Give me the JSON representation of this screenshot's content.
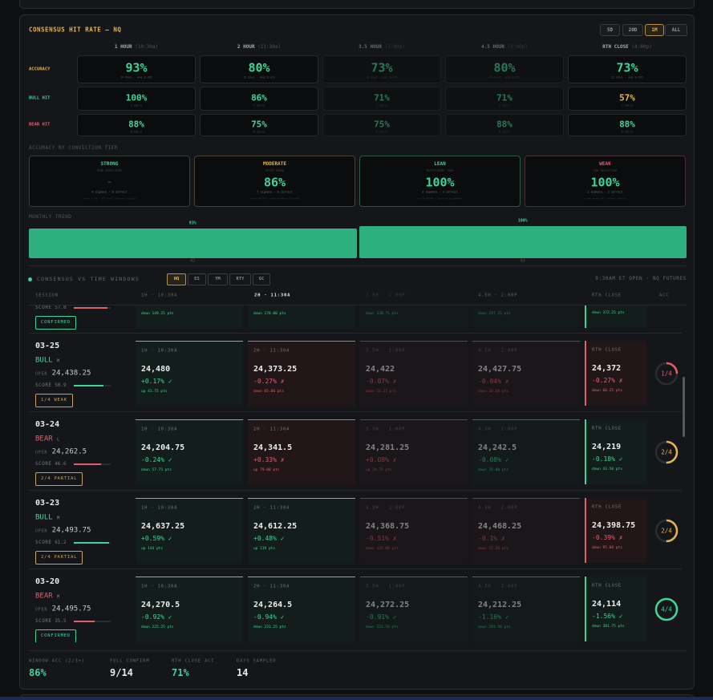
{
  "hit_rate": {
    "title": "CONSENSUS HIT RATE — NQ",
    "ranges": [
      "5D",
      "20D",
      "1M",
      "ALL"
    ],
    "active_range": 2,
    "columns": [
      {
        "name": "1 HOUR",
        "time": "(10:30a)",
        "dim": false
      },
      {
        "name": "2 HOUR",
        "time": "(11:30a)",
        "dim": false
      },
      {
        "name": "3.5 HOUR",
        "time": "(1:00p)",
        "dim": true
      },
      {
        "name": "4.5 HOUR",
        "time": "(2:00p)",
        "dim": true
      },
      {
        "name": "RTH CLOSE",
        "time": "(4:00p)",
        "dim": false
      }
    ],
    "rows": [
      {
        "label": "ACCURACY",
        "color": "#e2b454",
        "value_color": "#3ed598",
        "cells": [
          {
            "value": "93%",
            "sub": "14 days · avg 0.36%"
          },
          {
            "value": "80%",
            "sub": "15 days · avg 0.41%"
          },
          {
            "value": "73%",
            "sub": "15 days · avg 0.44%"
          },
          {
            "value": "80%",
            "sub": "15 days · avg 0.51%"
          },
          {
            "value": "73%",
            "sub": "15 days · avg 0.69%"
          }
        ]
      },
      {
        "label": "BULL HIT",
        "color": "#3ed598",
        "value_color": "#3ed598",
        "cells": [
          {
            "value": "100%",
            "sub": "7 calls"
          },
          {
            "value": "86%",
            "sub": "7 calls"
          },
          {
            "value": "71%",
            "sub": "7 calls"
          },
          {
            "value": "71%",
            "sub": "7 calls"
          },
          {
            "value": "57%",
            "sub": "7 calls",
            "color": "#e2b454"
          }
        ]
      },
      {
        "label": "BEAR HIT",
        "color": "#e0606a",
        "value_color": "#3ed598",
        "cells": [
          {
            "value": "88%",
            "sub": "8 calls"
          },
          {
            "value": "75%",
            "sub": "8 calls"
          },
          {
            "value": "75%",
            "sub": "8 calls"
          },
          {
            "value": "88%",
            "sub": "8 calls"
          },
          {
            "value": "88%",
            "sub": "8 calls"
          }
        ]
      }
    ]
  },
  "tiers": {
    "title": "ACCURACY BY CONVICTION TIER",
    "cards": [
      {
        "name": "STRONG",
        "color": "#3ed598",
        "border": "#34403b",
        "value_color": "#666",
        "sub": "high conviction",
        "value": "—",
        "stat": "0 signals · 0 correct",
        "note": "score ≥ 70 · all four windows aligned"
      },
      {
        "name": "MODERATE",
        "color": "#e2b454",
        "border": "#4a4230",
        "value_color": "#3ed598",
        "sub": "solid setup",
        "value": "86%",
        "stat": "7 signals · 6 correct",
        "note": "score 50–70 · most windows aligned"
      },
      {
        "name": "LEAN",
        "color": "#3ed598",
        "border": "#2c5a46",
        "value_color": "#3ed598",
        "sub": "directional lean",
        "value": "100%",
        "stat": "3 signals · 3 correct",
        "note": "score 40–50 · partial alignment"
      },
      {
        "name": "WEAK",
        "color": "#e0606a",
        "border": "#4a2f32",
        "value_color": "#3ed598",
        "sub": "low conviction",
        "value": "100%",
        "stat": "2 signals · 2 correct",
        "note": "score under 40 · mixed windows"
      }
    ]
  },
  "monthly": {
    "title": "MONTHLY TREND",
    "months": [
      "02",
      "03"
    ],
    "values": [
      93,
      100
    ],
    "value_labels": [
      "93%",
      "100%"
    ],
    "ylim": [
      0,
      100
    ],
    "color": "#2eb07e"
  },
  "windows": {
    "title": "CONSENSUS VS TIME WINDOWS",
    "tabs": [
      "NQ",
      "ES",
      "YM",
      "RTY",
      "GC"
    ],
    "active_tab": 0,
    "note": "9:30AM ET OPEN · NQ FUTURES",
    "headers": [
      "SESSION",
      "1H · 10:30A",
      "2H · 11:30A",
      "3.5H · 1:00P",
      "4.5H · 2:00P",
      "RTH CLOSE",
      "ACC"
    ],
    "active_header": 2,
    "dim_columns": [
      2,
      3
    ],
    "rows": [
      {
        "score_label": "SCORE",
        "score": 57.8,
        "bias_color": "#e0606a",
        "badge": "CONFIRMED",
        "badge_color": "#3ed598",
        "cells": [
          {
            "pts": "down 149.25 pts",
            "hit": true
          },
          {
            "pts": "down 178.00 pts",
            "hit": true
          },
          {
            "pts": "down 338.75 pts",
            "hit": true
          },
          {
            "pts": "down 297.25 pts",
            "hit": true
          },
          {
            "pts": "down 372.25 pts",
            "hit": true
          }
        ]
      },
      {
        "date": "03-25",
        "bias": "BULL",
        "grade": "M",
        "bias_color": "#3ed598",
        "open_label": "OPEN",
        "open": "24,438.25",
        "score_label": "SCORE",
        "score": 50.9,
        "badge": "1/4 WEAK",
        "badge_color": "#c9a25a",
        "acc": {
          "value": 1,
          "of": 4,
          "label": "1/4"
        },
        "acc_color": "#e0606a",
        "cells": [
          {
            "label": "1H · 10:30A",
            "price": "24,480",
            "change": "+0.17% ✓",
            "pts": "up 41.75 pts",
            "hit": true
          },
          {
            "label": "2H · 11:30A",
            "price": "24,373.25",
            "change": "-0.27% ✗",
            "pts": "down 65.00 pts",
            "hit": false
          },
          {
            "label": "3.5H · 1:00P",
            "price": "24,422",
            "change": "-0.07% ✗",
            "pts": "down 16.25 pts",
            "hit": false
          },
          {
            "label": "4.5H · 2:00P",
            "price": "24,427.75",
            "change": "-0.04% ✗",
            "pts": "down 10.50 pts",
            "hit": false
          },
          {
            "label": "RTH CLOSE",
            "price": "24,372",
            "change": "-0.27% ✗",
            "pts": "down 66.25 pts",
            "hit": false
          }
        ]
      },
      {
        "date": "03-24",
        "bias": "BEAR",
        "grade": "L",
        "bias_color": "#e0606a",
        "open_label": "OPEN",
        "open": "24,262.5",
        "score_label": "SCORE",
        "score": 46.6,
        "badge": "2/4 PARTIAL",
        "badge_color": "#c9a25a",
        "acc": {
          "value": 2,
          "of": 4,
          "label": "2/4"
        },
        "acc_color": "#e2b454",
        "cells": [
          {
            "label": "1H · 10:30A",
            "price": "24,204.75",
            "change": "-0.24% ✓",
            "pts": "down 57.75 pts",
            "hit": true
          },
          {
            "label": "2H · 11:30A",
            "price": "24,341.5",
            "change": "+0.33% ✗",
            "pts": "up 79.00 pts",
            "hit": false
          },
          {
            "label": "3.5H · 1:00P",
            "price": "24,281.25",
            "change": "+0.08% ✗",
            "pts": "up 18.75 pts",
            "hit": false
          },
          {
            "label": "4.5H · 2:00P",
            "price": "24,242.5",
            "change": "-0.08% ✓",
            "pts": "down 20.00 pts",
            "hit": true
          },
          {
            "label": "RTH CLOSE",
            "price": "24,219",
            "change": "-0.18% ✓",
            "pts": "down 43.50 pts",
            "hit": true
          }
        ]
      },
      {
        "date": "03-23",
        "bias": "BULL",
        "grade": "M",
        "bias_color": "#3ed598",
        "open_label": "OPEN",
        "open": "24,493.75",
        "score_label": "SCORE",
        "score": 61.2,
        "badge": "2/4 PARTIAL",
        "badge_color": "#c9a25a",
        "acc": {
          "value": 2,
          "of": 4,
          "label": "2/4"
        },
        "acc_color": "#e2b454",
        "cells": [
          {
            "label": "1H · 10:30A",
            "price": "24,637.25",
            "change": "+0.59% ✓",
            "pts": "up 144 pts",
            "hit": true
          },
          {
            "label": "2H · 11:30A",
            "price": "24,612.25",
            "change": "+0.48% ✓",
            "pts": "up 119 pts",
            "hit": true
          },
          {
            "label": "3.5H · 1:00P",
            "price": "24,368.75",
            "change": "-0.51% ✗",
            "pts": "down 125.00 pts",
            "hit": false
          },
          {
            "label": "4.5H · 2:00P",
            "price": "24,468.25",
            "change": "-0.1% ✗",
            "pts": "down 25.50 pts",
            "hit": false
          },
          {
            "label": "RTH CLOSE",
            "price": "24,398.75",
            "change": "-0.39% ✗",
            "pts": "down 95.00 pts",
            "hit": false
          }
        ]
      },
      {
        "date": "03-20",
        "bias": "BEAR",
        "grade": "M",
        "bias_color": "#e0606a",
        "open_label": "OPEN",
        "open": "24,495.75",
        "score_label": "SCORE",
        "score": 35.5,
        "badge": "CONFIRMED",
        "badge_color": "#3ed598",
        "acc": {
          "value": 4,
          "of": 4,
          "label": "4/4"
        },
        "acc_color": "#3ed598",
        "cells": [
          {
            "label": "1H · 10:30A",
            "price": "24,270.5",
            "change": "-0.92% ✓",
            "pts": "down 225.25 pts",
            "hit": true
          },
          {
            "label": "2H · 11:30A",
            "price": "24,264.5",
            "change": "-0.94% ✓",
            "pts": "down 231.25 pts",
            "hit": true
          },
          {
            "label": "3.5H · 1:00P",
            "price": "24,272.25",
            "change": "-0.91% ✓",
            "pts": "down 223.50 pts",
            "hit": true
          },
          {
            "label": "4.5H · 2:00P",
            "price": "24,212.25",
            "change": "-1.16% ✓",
            "pts": "down 283.50 pts",
            "hit": true
          },
          {
            "label": "RTH CLOSE",
            "price": "24,114",
            "change": "-1.56% ✓",
            "pts": "down 381.75 pts",
            "hit": true
          }
        ]
      }
    ]
  },
  "stats": [
    {
      "label": "WINDOW ACC (2/3+)",
      "value": "86%",
      "color": "#3ed598"
    },
    {
      "label": "FULL CONFIRM",
      "value": "9/14",
      "color": "#e8e8e8"
    },
    {
      "label": "RTH CLOSE ACC",
      "value": "71%",
      "color": "#3ed598"
    },
    {
      "label": "DAYS SAMPLED",
      "value": "14",
      "color": "#e8e8e8"
    }
  ]
}
